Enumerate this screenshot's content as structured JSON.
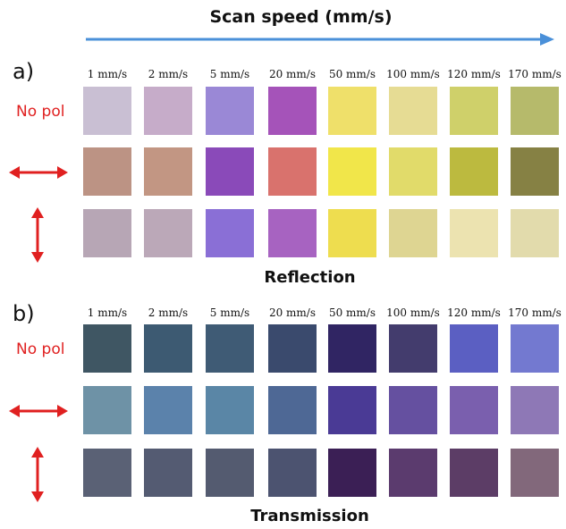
{
  "header": {
    "title": "Scan speed (mm/s)",
    "arrow_color": "#4a90d9"
  },
  "accent_red": "#e02020",
  "panels": [
    {
      "label": "a)",
      "caption": "Reflection",
      "columns": [
        "1 mm/s",
        "2 mm/s",
        "5 mm/s",
        "20 mm/s",
        "50 mm/s",
        "100 mm/s",
        "120 mm/s",
        "170 mm/s"
      ],
      "rows": [
        {
          "label": "No pol",
          "arrow": "none",
          "colors": [
            "#c9bfd3",
            "#c6acc9",
            "#9a88d6",
            "#a553b9",
            "#efe06a",
            "#e6dc94",
            "#cfd06a",
            "#b6ba6b"
          ]
        },
        {
          "label": "",
          "arrow": "horizontal-double-arrow-icon",
          "colors": [
            "#bc9384",
            "#c29683",
            "#8a4ab9",
            "#d9726d",
            "#f1e64a",
            "#e1db6a",
            "#bcba3f",
            "#868144"
          ]
        },
        {
          "label": "",
          "arrow": "vertical-double-arrow-icon",
          "colors": [
            "#b7a6b5",
            "#bba8b8",
            "#8a6fd6",
            "#a763c1",
            "#eedd4f",
            "#ded592",
            "#ece3b0",
            "#e2dbac"
          ]
        }
      ]
    },
    {
      "label": "b)",
      "caption": "Transmission",
      "columns": [
        "1 mm/s",
        "2 mm/s",
        "5 mm/s",
        "20 mm/s",
        "50 mm/s",
        "100 mm/s",
        "120 mm/s",
        "170 mm/s"
      ],
      "rows": [
        {
          "label": "No pol",
          "arrow": "none",
          "colors": [
            "#3f5663",
            "#3d5a72",
            "#3f5b75",
            "#3a4a6d",
            "#302563",
            "#433c6d",
            "#5b5fc2",
            "#7379d0"
          ]
        },
        {
          "label": "",
          "arrow": "horizontal-double-arrow-icon",
          "colors": [
            "#6e92a6",
            "#5b82ab",
            "#5a86a6",
            "#4e6895",
            "#4a3a95",
            "#6550a0",
            "#7a5fae",
            "#8e78b6"
          ]
        },
        {
          "label": "",
          "arrow": "vertical-double-arrow-icon",
          "colors": [
            "#5a6175",
            "#545b72",
            "#545b70",
            "#4c5370",
            "#3b1f55",
            "#5b3b6e",
            "#5c3d66",
            "#82687b"
          ]
        }
      ]
    }
  ]
}
